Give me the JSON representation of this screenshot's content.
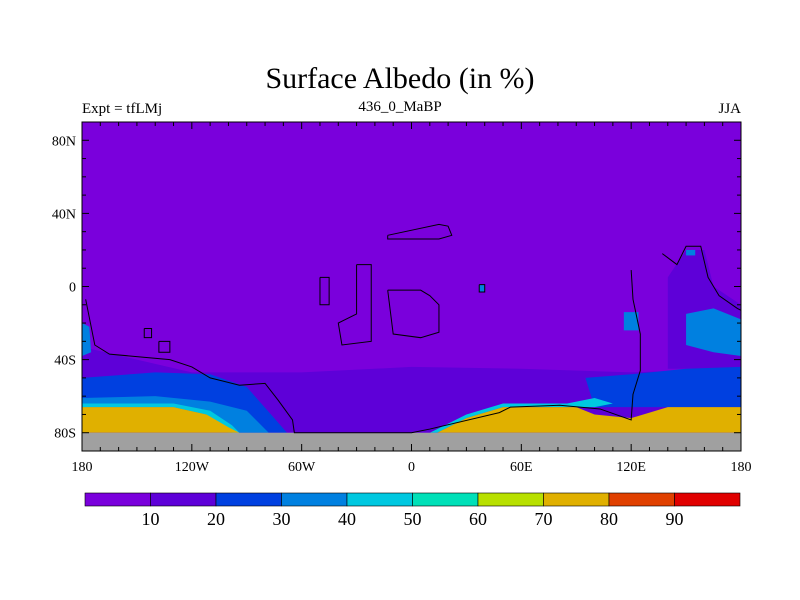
{
  "chart_data": {
    "type": "heatmap",
    "title": "Surface Albedo (in %)",
    "left_label": "Expt = tfLMj",
    "subtitle": "436_0_MaBP",
    "right_label": "JJA",
    "xlim": [
      -180,
      180
    ],
    "ylim": [
      -90,
      90
    ],
    "x_ticks": [
      {
        "value": -180,
        "label": "180"
      },
      {
        "value": -120,
        "label": "120W"
      },
      {
        "value": -60,
        "label": "60W"
      },
      {
        "value": 0,
        "label": "0"
      },
      {
        "value": 60,
        "label": "60E"
      },
      {
        "value": 120,
        "label": "120E"
      },
      {
        "value": 180,
        "label": "180"
      }
    ],
    "y_ticks": [
      {
        "value": 80,
        "label": "80N"
      },
      {
        "value": 40,
        "label": "40N"
      },
      {
        "value": 0,
        "label": "0"
      },
      {
        "value": -40,
        "label": "40S"
      },
      {
        "value": -80,
        "label": "80S"
      }
    ],
    "colorbar": {
      "levels": [
        0,
        10,
        20,
        30,
        40,
        50,
        60,
        70,
        80,
        90,
        100
      ],
      "labels": [
        "10",
        "20",
        "30",
        "40",
        "50",
        "60",
        "70",
        "80",
        "90"
      ],
      "colors": [
        "#7a00dc",
        "#5e00d8",
        "#0040e0",
        "#0080e0",
        "#00c8e0",
        "#00e0b8",
        "#b8e000",
        "#e0b000",
        "#e04000",
        "#e00000"
      ]
    },
    "missing_color": "#a0a0a0",
    "regions": [
      {
        "bin": 1,
        "polygon": [
          [
            -180,
            -33
          ],
          [
            -150,
            -40
          ],
          [
            -120,
            -47
          ],
          [
            -60,
            -47
          ],
          [
            0,
            -44
          ],
          [
            60,
            -45
          ],
          [
            120,
            -47
          ],
          [
            180,
            -45
          ],
          [
            180,
            -80
          ],
          [
            -180,
            -80
          ]
        ]
      },
      {
        "bin": 1,
        "polygon": [
          [
            140,
            5
          ],
          [
            150,
            20
          ],
          [
            160,
            20
          ],
          [
            165,
            0
          ],
          [
            180,
            -10
          ],
          [
            180,
            -45
          ],
          [
            140,
            -45
          ]
        ]
      },
      {
        "bin": 2,
        "polygon": [
          [
            -180,
            -50
          ],
          [
            -140,
            -47
          ],
          [
            -110,
            -48
          ],
          [
            -90,
            -55
          ],
          [
            -75,
            -72
          ],
          [
            -68,
            -80
          ],
          [
            -100,
            -80
          ],
          [
            -180,
            -66
          ]
        ]
      },
      {
        "bin": 2,
        "polygon": [
          [
            95,
            -50
          ],
          [
            120,
            -48
          ],
          [
            150,
            -45
          ],
          [
            180,
            -44
          ],
          [
            180,
            -66
          ],
          [
            100,
            -66
          ]
        ]
      },
      {
        "bin": 3,
        "polygon": [
          [
            -180,
            -61
          ],
          [
            -140,
            -60
          ],
          [
            -110,
            -63
          ],
          [
            -90,
            -68
          ],
          [
            -78,
            -80
          ],
          [
            -100,
            -80
          ],
          [
            -180,
            -66
          ]
        ]
      },
      {
        "bin": 3,
        "polygon": [
          [
            150,
            -15
          ],
          [
            165,
            -12
          ],
          [
            180,
            -18
          ],
          [
            180,
            -38
          ],
          [
            165,
            -36
          ],
          [
            150,
            -32
          ]
        ]
      },
      {
        "bin": 3,
        "polygon": [
          [
            -180,
            -20
          ],
          [
            -176,
            -22
          ],
          [
            -175,
            -36
          ],
          [
            -180,
            -38
          ]
        ]
      },
      {
        "bin": 3,
        "polygon": [
          [
            116,
            -14
          ],
          [
            124,
            -14
          ],
          [
            124,
            -24
          ],
          [
            116,
            -24
          ]
        ]
      },
      {
        "bin": 3,
        "polygon": [
          [
            150,
            20
          ],
          [
            155,
            20
          ],
          [
            155,
            17
          ],
          [
            150,
            17
          ]
        ]
      },
      {
        "bin": 3,
        "polygon": [
          [
            37,
            1
          ],
          [
            40,
            1
          ],
          [
            40,
            -3
          ],
          [
            37,
            -3
          ]
        ]
      },
      {
        "bin": 4,
        "polygon": [
          [
            -180,
            -64
          ],
          [
            -130,
            -64
          ],
          [
            -110,
            -68
          ],
          [
            -98,
            -76
          ],
          [
            -94,
            -80
          ],
          [
            -98,
            -80
          ],
          [
            -112,
            -70
          ],
          [
            -130,
            -66
          ],
          [
            -180,
            -66
          ]
        ]
      },
      {
        "bin": 4,
        "polygon": [
          [
            10,
            -80
          ],
          [
            30,
            -70
          ],
          [
            50,
            -64
          ],
          [
            85,
            -64
          ],
          [
            100,
            -61
          ],
          [
            110,
            -64
          ],
          [
            100,
            -66
          ],
          [
            50,
            -66
          ],
          [
            30,
            -72
          ],
          [
            14,
            -80
          ]
        ]
      },
      {
        "bin": 7,
        "polygon": [
          [
            -180,
            -66
          ],
          [
            -130,
            -66
          ],
          [
            -112,
            -70
          ],
          [
            -100,
            -77
          ],
          [
            -94,
            -80
          ],
          [
            -180,
            -80
          ]
        ]
      },
      {
        "bin": 7,
        "polygon": [
          [
            14,
            -80
          ],
          [
            30,
            -72
          ],
          [
            50,
            -66
          ],
          [
            90,
            -66
          ],
          [
            100,
            -70
          ],
          [
            120,
            -72
          ],
          [
            140,
            -66
          ],
          [
            180,
            -66
          ],
          [
            180,
            -80
          ]
        ]
      }
    ],
    "coastlines": [
      [
        [
          -178,
          -7
        ],
        [
          -173,
          -32
        ],
        [
          -165,
          -37
        ],
        [
          -132,
          -40
        ],
        [
          -120,
          -44
        ],
        [
          -110,
          -50
        ],
        [
          -94,
          -54
        ],
        [
          -80,
          -53
        ],
        [
          -73,
          -62
        ],
        [
          -65,
          -73
        ],
        [
          -64,
          -80
        ],
        [
          0,
          -80
        ],
        [
          10,
          -78
        ],
        [
          48,
          -69
        ],
        [
          54,
          -66
        ],
        [
          81,
          -65
        ],
        [
          103,
          -67
        ],
        [
          120,
          -73
        ],
        [
          121,
          -59
        ],
        [
          125,
          -46
        ],
        [
          125,
          -26
        ],
        [
          121,
          -7
        ],
        [
          120,
          9
        ]
      ],
      [
        [
          137,
          18
        ],
        [
          145,
          12
        ],
        [
          150,
          22
        ],
        [
          158,
          22
        ],
        [
          162,
          5
        ],
        [
          168,
          -5
        ],
        [
          178,
          -12
        ],
        [
          180,
          -13
        ]
      ],
      [
        [
          -50,
          5
        ],
        [
          -45,
          5
        ],
        [
          -45,
          -10
        ],
        [
          -50,
          -10
        ],
        [
          -50,
          5
        ]
      ],
      [
        [
          -30,
          12
        ],
        [
          -22,
          12
        ],
        [
          -22,
          -30
        ],
        [
          -38,
          -32
        ],
        [
          -40,
          -20
        ],
        [
          -30,
          -15
        ],
        [
          -30,
          12
        ]
      ],
      [
        [
          -13,
          -2
        ],
        [
          5,
          -2
        ],
        [
          10,
          -5
        ],
        [
          15,
          -10
        ],
        [
          15,
          -25
        ],
        [
          5,
          -28
        ],
        [
          -10,
          -26
        ],
        [
          -13,
          -2
        ]
      ],
      [
        [
          -13,
          28
        ],
        [
          15,
          34
        ],
        [
          20,
          33
        ],
        [
          22,
          28
        ],
        [
          15,
          26
        ],
        [
          5,
          26
        ],
        [
          -13,
          26
        ],
        [
          -13,
          28
        ]
      ],
      [
        [
          -146,
          -23
        ],
        [
          -142,
          -23
        ],
        [
          -142,
          -28
        ],
        [
          -146,
          -28
        ],
        [
          -146,
          -23
        ]
      ],
      [
        [
          -138,
          -30
        ],
        [
          -132,
          -30
        ],
        [
          -132,
          -36
        ],
        [
          -138,
          -36
        ],
        [
          -138,
          -30
        ]
      ],
      [
        [
          37,
          1
        ],
        [
          40,
          1
        ],
        [
          40,
          -3
        ],
        [
          37,
          -3
        ],
        [
          37,
          1
        ]
      ]
    ]
  }
}
